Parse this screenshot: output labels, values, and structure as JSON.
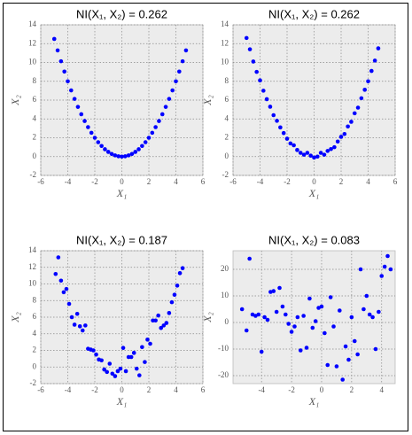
{
  "chart_data": [
    {
      "type": "scatter",
      "title": "NI(X₁, X₂) = 0.262",
      "xlabel": "X₁",
      "ylabel": "X₂",
      "color": "#0000ff",
      "grid": true,
      "xlim": [
        -6,
        6
      ],
      "ylim": [
        -2,
        14
      ],
      "xticks": [
        -6,
        -4,
        -2,
        0,
        2,
        4,
        6
      ],
      "yticks": [
        -2,
        0,
        2,
        4,
        6,
        8,
        10,
        12,
        14
      ],
      "x": [
        -5,
        -4.75,
        -4.5,
        -4.25,
        -4,
        -3.75,
        -3.5,
        -3.25,
        -3,
        -2.75,
        -2.5,
        -2.25,
        -2,
        -1.75,
        -1.5,
        -1.25,
        -1,
        -0.75,
        -0.5,
        -0.25,
        0,
        0.25,
        0.5,
        0.75,
        1,
        1.25,
        1.5,
        1.75,
        2,
        2.25,
        2.5,
        2.75,
        3,
        3.25,
        3.5,
        3.75,
        4,
        4.25,
        4.5,
        4.75
      ],
      "values": [
        12.5,
        11.28,
        10.13,
        9.03,
        8,
        7.03,
        6.13,
        5.28,
        4.5,
        3.78,
        3.13,
        2.53,
        2,
        1.53,
        1.13,
        0.78,
        0.5,
        0.28,
        0.13,
        0.03,
        0,
        0.03,
        0.13,
        0.28,
        0.5,
        0.78,
        1.13,
        1.53,
        2,
        2.53,
        3.13,
        3.78,
        4.5,
        5.28,
        6.13,
        7.03,
        8,
        9.03,
        10.13,
        11.28
      ]
    },
    {
      "type": "scatter",
      "title": "NI(X₁, X₂) = 0.262",
      "xlabel": "X₁",
      "ylabel": "X₂",
      "color": "#0000ff",
      "grid": true,
      "xlim": [
        -6,
        6
      ],
      "ylim": [
        -2,
        14
      ],
      "xticks": [
        -6,
        -4,
        -2,
        0,
        2,
        4,
        6
      ],
      "yticks": [
        -2,
        0,
        2,
        4,
        6,
        8,
        10,
        12,
        14
      ],
      "x": [
        -5,
        -4.75,
        -4.5,
        -4.25,
        -4,
        -3.75,
        -3.5,
        -3.25,
        -3,
        -2.75,
        -2.5,
        -2.25,
        -2,
        -1.75,
        -1.5,
        -1.25,
        -1,
        -0.75,
        -0.5,
        -0.25,
        0,
        0.25,
        0.5,
        0.75,
        1,
        1.25,
        1.5,
        1.75,
        2,
        2.25,
        2.5,
        2.75,
        3,
        3.25,
        3.5,
        3.75,
        4,
        4.25,
        4.5,
        4.75
      ],
      "values": [
        12.6,
        11.4,
        10.1,
        9.0,
        8.1,
        7.0,
        6.1,
        5.3,
        4.4,
        3.8,
        3.1,
        2.5,
        1.9,
        1.4,
        1.2,
        0.7,
        0.4,
        0.2,
        0.4,
        0.1,
        -0.1,
        0.0,
        0.4,
        0.2,
        0.6,
        0.8,
        1.0,
        1.6,
        2.1,
        2.4,
        3.2,
        3.7,
        4.6,
        5.2,
        6.2,
        7.1,
        8.0,
        9.1,
        10.2,
        11.5
      ]
    },
    {
      "type": "scatter",
      "title": "NI(X₁, X₂) = 0.187",
      "xlabel": "X₁",
      "ylabel": "X₂",
      "color": "#0000ff",
      "grid": true,
      "xlim": [
        -6,
        6
      ],
      "ylim": [
        -2,
        14
      ],
      "xticks": [
        -6,
        -4,
        -2,
        0,
        2,
        4,
        6
      ],
      "yticks": [
        -2,
        0,
        2,
        4,
        6,
        8,
        10,
        12,
        14
      ],
      "x": [
        -4.9,
        -4.7,
        -4.5,
        -4.3,
        -4.1,
        -3.9,
        -3.7,
        -3.5,
        -3.3,
        -3.1,
        -2.9,
        -2.7,
        -2.5,
        -2.3,
        -2.1,
        -1.9,
        -1.7,
        -1.5,
        -1.3,
        -1.1,
        -0.9,
        -0.7,
        -0.5,
        -0.3,
        -0.1,
        0.1,
        0.3,
        0.5,
        0.7,
        0.9,
        1.1,
        1.3,
        1.5,
        1.7,
        1.9,
        2.1,
        2.3,
        2.5,
        2.7,
        2.9,
        3.1,
        3.3,
        3.5,
        3.7,
        3.9,
        4.1,
        4.3,
        4.5
      ],
      "values": [
        11.2,
        13.2,
        10.4,
        9.0,
        9.4,
        7.6,
        6.0,
        5.1,
        6.4,
        4.9,
        4.4,
        5.0,
        2.2,
        2.1,
        2.0,
        1.5,
        0.9,
        0.8,
        -0.3,
        -0.6,
        0.4,
        -0.8,
        -1.1,
        -0.5,
        -0.2,
        2.3,
        -0.5,
        1.2,
        1.2,
        1.7,
        -0.2,
        -1.0,
        2.4,
        0.6,
        3.3,
        2.8,
        5.6,
        5.6,
        6.2,
        4.7,
        5.0,
        5.3,
        6.5,
        7.8,
        8.7,
        9.8,
        11.3,
        11.9
      ]
    },
    {
      "type": "scatter",
      "title": "NI(X₁, X₂) = 0.083",
      "xlabel": "X₁",
      "ylabel": "X₂",
      "color": "#0000ff",
      "grid": true,
      "xlim": [
        -5.9,
        4.9
      ],
      "ylim": [
        -23,
        27
      ],
      "xticks": [
        -4,
        -2,
        0,
        2,
        4
      ],
      "yticks": [
        -20,
        -10,
        0,
        10,
        20
      ],
      "x": [
        -5.3,
        -5.0,
        -4.8,
        -4.6,
        -4.4,
        -4.2,
        -4.0,
        -3.8,
        -3.6,
        -3.4,
        -3.2,
        -3.0,
        -2.8,
        -2.6,
        -2.4,
        -2.2,
        -2.0,
        -1.8,
        -1.6,
        -1.4,
        -1.2,
        -1.0,
        -0.8,
        -0.6,
        -0.4,
        -0.2,
        0.0,
        0.2,
        0.4,
        0.6,
        0.8,
        1.0,
        1.2,
        1.4,
        1.6,
        1.8,
        2.0,
        2.2,
        2.4,
        2.6,
        2.8,
        3.0,
        3.2,
        3.4,
        3.6,
        3.8,
        4.0,
        4.2,
        4.4,
        4.6
      ],
      "values": [
        5,
        -3,
        24,
        3,
        2.5,
        3,
        -11,
        2,
        1,
        11.5,
        11.8,
        4,
        13,
        6,
        3,
        -0.5,
        -3.5,
        -1.5,
        2,
        -10.5,
        2.5,
        -9.5,
        9,
        -2,
        0.5,
        5.5,
        6,
        -4,
        -16,
        9.5,
        -1.5,
        -16.5,
        4.5,
        -21.5,
        -9,
        -14,
        2,
        -7,
        -12,
        20,
        5,
        10,
        3,
        2,
        -10,
        4,
        17.5,
        21,
        25,
        20
      ]
    }
  ]
}
